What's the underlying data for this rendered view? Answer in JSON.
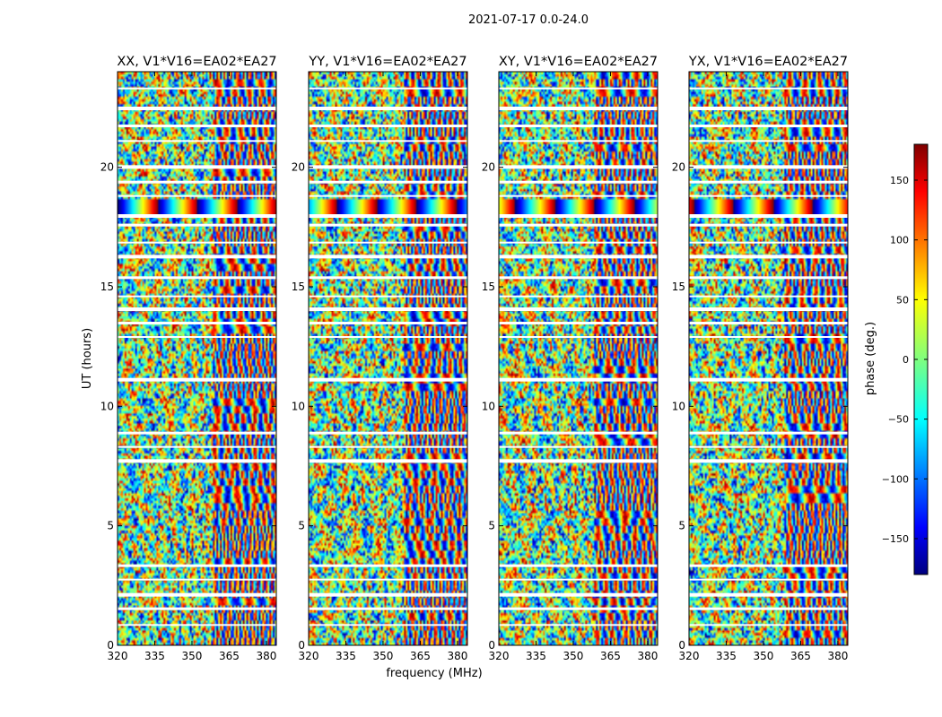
{
  "figure_title": "2021-07-17 0.0-24.0",
  "chart_data": {
    "type": "heatmap",
    "suptitle": "2021-07-17 0.0-24.0",
    "xlabel": "frequency (MHz)",
    "ylabel": "UT (hours)",
    "xlim": [
      320,
      384
    ],
    "ylim": [
      0,
      24
    ],
    "x_ticks": [
      320,
      335,
      350,
      365,
      380
    ],
    "y_ticks": [
      0,
      5,
      10,
      15,
      20
    ],
    "colormap": "jet",
    "panels": [
      {
        "title": "XX, V1*V16=EA02*EA27",
        "pol": "XX"
      },
      {
        "title": "YY, V1*V16=EA02*EA27",
        "pol": "YY"
      },
      {
        "title": "XY, V1*V16=EA02*EA27",
        "pol": "XY"
      },
      {
        "title": "YX, V1*V16=EA02*EA27",
        "pol": "YX"
      }
    ],
    "colorbar": {
      "label": "phase (deg.)",
      "range": [
        -180,
        180
      ],
      "ticks": [
        -150,
        -100,
        -50,
        0,
        50,
        100,
        150
      ]
    },
    "blank_rows_hours": [
      0.85,
      1.55,
      2.15,
      2.75,
      3.35,
      7.75,
      8.3,
      8.9,
      11.15,
      12.9,
      13.5,
      14.1,
      14.6,
      15.4,
      16.3,
      16.85,
      17.6,
      18.0,
      18.8,
      19.4,
      20.05,
      21.1,
      21.75,
      22.5,
      23.3
    ],
    "colors": {
      "axes_edge": "#000000",
      "background": "#ffffff"
    }
  }
}
